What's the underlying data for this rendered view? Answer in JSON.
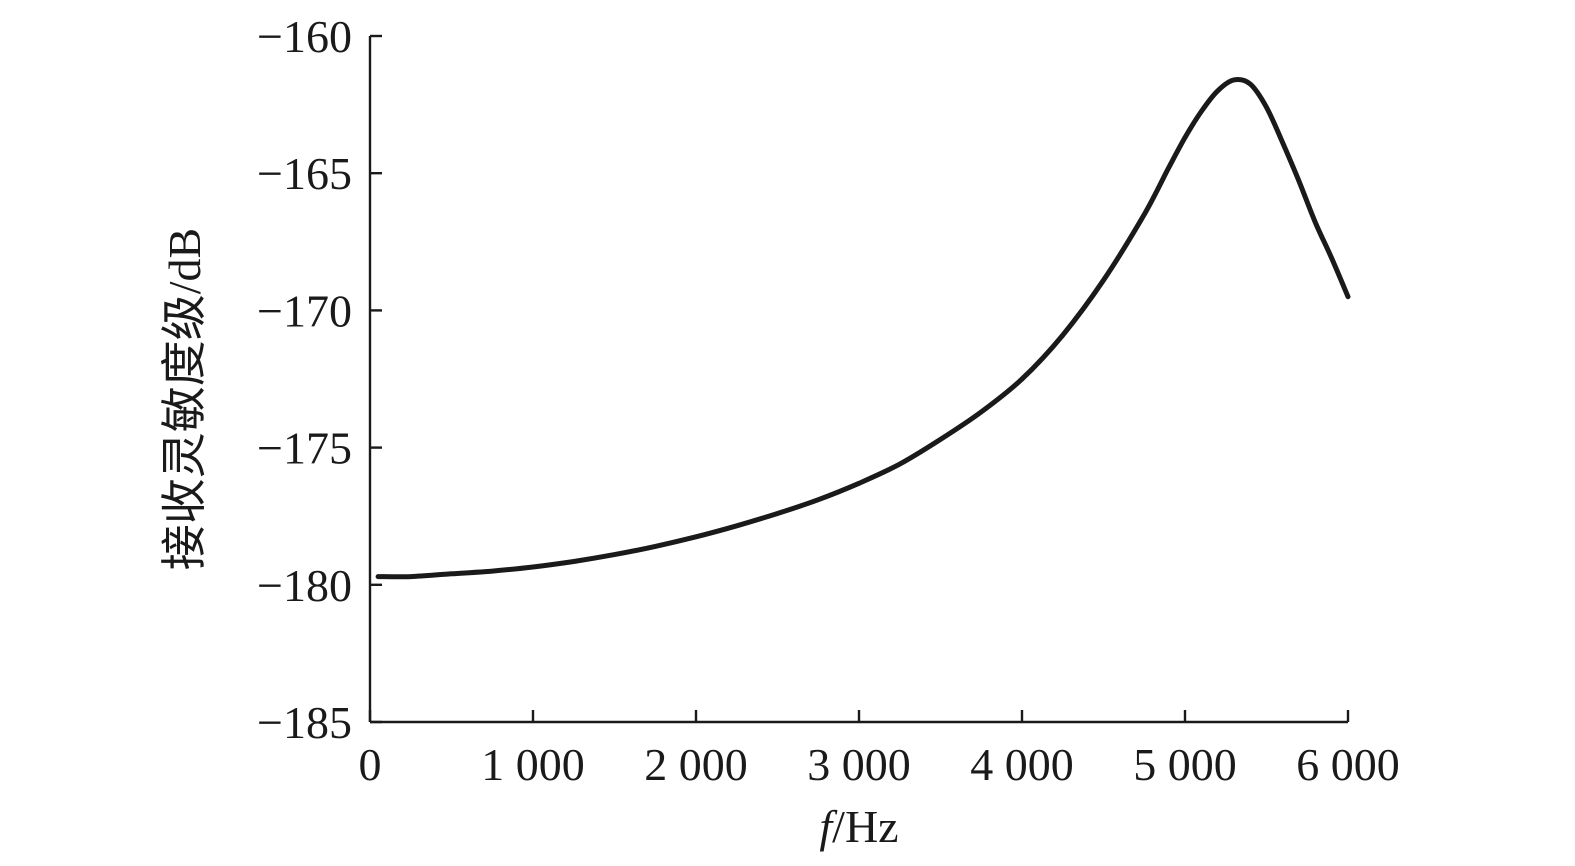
{
  "chart_data": {
    "type": "line",
    "title": "",
    "xlabel": {
      "italic": "f",
      "rest": "/Hz"
    },
    "ylabel": "接收灵敏度级/dB",
    "xlim": [
      0,
      6000
    ],
    "ylim": [
      -185,
      -160
    ],
    "x_ticks": [
      0,
      1000,
      2000,
      3000,
      4000,
      5000,
      6000
    ],
    "x_tick_labels": [
      "0",
      "1 000",
      "2 000",
      "3 000",
      "4 000",
      "5 000",
      "6 000"
    ],
    "y_ticks": [
      -160,
      -165,
      -170,
      -175,
      -180,
      -185
    ],
    "y_tick_labels": [
      "−160",
      "−165",
      "−170",
      "−175",
      "−180",
      "−185"
    ],
    "grid": false,
    "legend": "none",
    "line_color": "#1a1a1a",
    "series": [
      {
        "x": [
          50,
          250,
          500,
          750,
          1000,
          1250,
          1500,
          1750,
          2000,
          2250,
          2500,
          2750,
          3000,
          3250,
          3500,
          3750,
          4000,
          4250,
          4500,
          4750,
          4900,
          5000,
          5100,
          5200,
          5300,
          5400,
          5500,
          5600,
          5700,
          5800,
          5900,
          6000
        ],
        "y": [
          -179.7,
          -179.7,
          -179.6,
          -179.5,
          -179.35,
          -179.15,
          -178.9,
          -178.6,
          -178.25,
          -177.85,
          -177.4,
          -176.9,
          -176.3,
          -175.6,
          -174.7,
          -173.7,
          -172.5,
          -170.9,
          -168.9,
          -166.5,
          -164.8,
          -163.7,
          -162.75,
          -162.0,
          -161.6,
          -161.75,
          -162.6,
          -163.9,
          -165.3,
          -166.8,
          -168.1,
          -169.5
        ]
      }
    ]
  }
}
